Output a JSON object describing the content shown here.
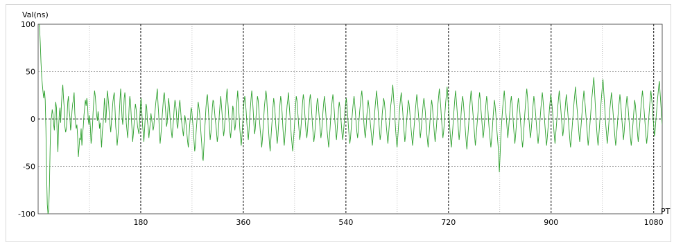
{
  "chart_data": {
    "type": "line",
    "ylabel": "Val(ns)",
    "xlabel": "PTP",
    "xlim": [
      0,
      1095
    ],
    "ylim": [
      -100,
      100
    ],
    "x_ticks": [
      180,
      360,
      540,
      720,
      900,
      1080
    ],
    "y_ticks": [
      100,
      50,
      0,
      -50,
      -100
    ],
    "grid": true,
    "line_color": "#2ea02e",
    "series": [
      {
        "values": [
          118,
          112,
          98,
          80,
          60,
          45,
          36,
          28,
          22,
          30,
          20,
          -10,
          -58,
          -90,
          -100,
          -96,
          -70,
          -30,
          -2,
          2,
          10,
          5,
          -6,
          -12,
          8,
          18,
          12,
          -18,
          -35,
          -8,
          5,
          12,
          -4,
          16,
          28,
          36,
          22,
          12,
          -8,
          -14,
          -10,
          2,
          18,
          24,
          10,
          2,
          -12,
          -6,
          8,
          16,
          20,
          28,
          6,
          -4,
          -10,
          -6,
          -18,
          -40,
          -30,
          -20,
          -22,
          -10,
          -28,
          -16,
          -8,
          4,
          12,
          20,
          14,
          22,
          16,
          0,
          -6,
          4,
          -8,
          -26,
          -20,
          -8,
          8,
          20,
          30,
          24,
          14,
          4,
          -2,
          8,
          2,
          -10,
          -4,
          -18,
          -30,
          -14,
          -6,
          6,
          22,
          12,
          -4,
          10,
          30,
          24,
          16,
          4,
          -6,
          -14,
          -2,
          8,
          18,
          24,
          28,
          12,
          -8,
          -16,
          -28,
          -20,
          -10,
          4,
          20,
          32,
          18,
          2,
          -6,
          6,
          22,
          28,
          16,
          -4,
          -12,
          -20,
          -6,
          12,
          24,
          18,
          4,
          -10,
          -24,
          -16,
          -6,
          8,
          16,
          10,
          0,
          -8,
          -12,
          -16,
          -2,
          14,
          22,
          8,
          -6,
          -14,
          -24,
          -10,
          4,
          16,
          12,
          -2,
          -8,
          -20,
          -12,
          -4,
          6,
          0,
          -6,
          -12,
          -8,
          2,
          10,
          18,
          24,
          32,
          16,
          4,
          -14,
          -26,
          -18,
          -8,
          4,
          14,
          24,
          28,
          16,
          6,
          -8,
          -4,
          10,
          22,
          14,
          2,
          -6,
          -14,
          -20,
          -10,
          0,
          12,
          20,
          16,
          8,
          -6,
          -10,
          2,
          14,
          20,
          10,
          0,
          -6,
          -12,
          -18,
          -8,
          4,
          0,
          -8,
          -16,
          -24,
          -30,
          -18,
          -6,
          4,
          12,
          8,
          -2,
          -10,
          -22,
          -34,
          -28,
          -14,
          -4,
          8,
          18,
          12,
          6,
          -4,
          -16,
          -26,
          -40,
          -44,
          -30,
          -14,
          -2,
          12,
          22,
          26,
          14,
          2,
          -10,
          -22,
          -14,
          -2,
          12,
          20,
          18,
          10,
          0,
          -6,
          -14,
          -24,
          -18,
          -8,
          6,
          16,
          24,
          14,
          4,
          -8,
          -18,
          -12,
          0,
          12,
          24,
          32,
          18,
          6,
          -6,
          -14,
          -20,
          -10,
          2,
          14,
          10,
          -4,
          -12,
          -6,
          8,
          20,
          30,
          16,
          4,
          -10,
          -20,
          -28,
          -18,
          -6,
          6,
          18,
          24,
          18,
          8,
          -4,
          -14,
          -22,
          -12,
          2,
          12,
          22,
          30,
          20,
          8,
          -6,
          -16,
          -10,
          2,
          14,
          24,
          20,
          10,
          -2,
          -12,
          -20,
          -30,
          -22,
          -10,
          2,
          14,
          22,
          30,
          24,
          10,
          -2,
          -14,
          -26,
          -34,
          -22,
          -10,
          0,
          12,
          22,
          16,
          6,
          -6,
          -16,
          -26,
          -18,
          -6,
          6,
          16,
          24,
          18,
          6,
          -8,
          -20,
          -28,
          -18,
          -6,
          4,
          14,
          20,
          28,
          16,
          4,
          -6,
          -18,
          -26,
          -34,
          -24,
          -12,
          0,
          12,
          24,
          20,
          10,
          -2,
          -12,
          -22,
          -16,
          -6,
          6,
          18,
          26,
          20,
          8,
          -4,
          -14,
          -20,
          -12,
          0,
          10,
          20,
          26,
          18,
          6,
          -6,
          -16,
          -24,
          -18,
          -8,
          2,
          14,
          22,
          18,
          8,
          -2,
          -12,
          -20,
          -14,
          -4,
          8,
          18,
          24,
          16,
          6,
          -6,
          -14,
          -22,
          -30,
          -20,
          -10,
          2,
          12,
          20,
          26,
          18,
          8,
          -4,
          -14,
          -22,
          -12,
          0,
          10,
          18,
          12,
          4,
          -6,
          -16,
          -22,
          -14,
          -4,
          8,
          16,
          22,
          14,
          4,
          -8,
          -18,
          -26,
          -20,
          -10,
          0,
          10,
          18,
          24,
          16,
          6,
          -4,
          -14,
          -20,
          -12,
          -2,
          8,
          16,
          24,
          30,
          20,
          8,
          -4,
          -14,
          -20,
          -10,
          2,
          12,
          20,
          14,
          6,
          -4,
          -12,
          -20,
          -28,
          -18,
          -8,
          4,
          14,
          22,
          30,
          20,
          10,
          -2,
          -12,
          -22,
          -16,
          -6,
          6,
          14,
          22,
          18,
          10,
          0,
          -10,
          -18,
          -26,
          -16,
          -6,
          4,
          14,
          20,
          28,
          36,
          24,
          12,
          0,
          -12,
          -22,
          -30,
          -20,
          -8,
          4,
          14,
          22,
          28,
          18,
          8,
          -4,
          -14,
          -24,
          -18,
          -8,
          2,
          12,
          20,
          16,
          8,
          -2,
          -12,
          -20,
          -28,
          -20,
          -10,
          0,
          10,
          18,
          26,
          18,
          8,
          -2,
          -12,
          -20,
          -12,
          -4,
          6,
          16,
          22,
          16,
          8,
          -4,
          -14,
          -22,
          -30,
          -20,
          -10,
          2,
          12,
          20,
          14,
          4,
          -6,
          -16,
          -24,
          -16,
          -6,
          6,
          16,
          24,
          32,
          22,
          12,
          0,
          -10,
          -20,
          -14,
          -4,
          8,
          18,
          26,
          34,
          24,
          12,
          0,
          -12,
          -22,
          -30,
          -20,
          -10,
          2,
          12,
          22,
          30,
          20,
          10,
          -2,
          -12,
          -22,
          -14,
          -4,
          8,
          18,
          24,
          18,
          8,
          -4,
          -14,
          -24,
          -32,
          -22,
          -12,
          0,
          12,
          22,
          30,
          22,
          12,
          2,
          -8,
          -18,
          -28,
          -20,
          -10,
          0,
          10,
          20,
          28,
          20,
          10,
          0,
          -10,
          -20,
          -14,
          -4,
          6,
          16,
          24,
          18,
          8,
          -4,
          -14,
          -22,
          -30,
          -22,
          -12,
          0,
          10,
          20,
          14,
          6,
          -6,
          -16,
          -26,
          -36,
          -56,
          -40,
          -22,
          -8,
          4,
          14,
          22,
          30,
          20,
          10,
          0,
          -10,
          -20,
          -12,
          -2,
          8,
          18,
          24,
          16,
          6,
          -6,
          -16,
          -26,
          -18,
          -8,
          4,
          14,
          22,
          16,
          8,
          -2,
          -12,
          -22,
          -30,
          -20,
          -8,
          4,
          14,
          24,
          32,
          22,
          12,
          0,
          -10,
          -20,
          -14,
          -4,
          6,
          16,
          24,
          18,
          10,
          0,
          -10,
          -18,
          -26,
          -18,
          -8,
          2,
          12,
          20,
          28,
          20,
          10,
          0,
          -10,
          -20,
          -28,
          -20,
          -10,
          0,
          10,
          18,
          26,
          20,
          12,
          2,
          -8,
          -18,
          -26,
          -16,
          -6,
          4,
          14,
          22,
          30,
          22,
          12,
          2,
          -8,
          -18,
          -12,
          -2,
          8,
          18,
          26,
          18,
          8,
          -2,
          -12,
          -22,
          -30,
          -22,
          -12,
          -2,
          8,
          18,
          26,
          34,
          24,
          14,
          4,
          -6,
          -16,
          -24,
          -16,
          -6,
          4,
          14,
          22,
          30,
          22,
          12,
          2,
          -8,
          -18,
          -28,
          -20,
          -10,
          0,
          10,
          20,
          28,
          36,
          44,
          30,
          16,
          2,
          -10,
          -20,
          -28,
          -18,
          -8,
          4,
          14,
          24,
          34,
          42,
          30,
          18,
          6,
          -6,
          -16,
          -26,
          -18,
          -8,
          2,
          12,
          20,
          28,
          20,
          10,
          0,
          -10,
          -20,
          -28,
          -20,
          -10,
          0,
          10,
          18,
          26,
          18,
          8,
          -2,
          -12,
          -22,
          -14,
          -4,
          6,
          16,
          24,
          18,
          8,
          -2,
          -12,
          -20,
          -28,
          -20,
          -10,
          0,
          10,
          20,
          14,
          4,
          -6,
          -16,
          -24,
          -16,
          -6,
          4,
          14,
          22,
          30,
          22,
          12,
          2,
          -8,
          -18,
          -26,
          -18,
          -8,
          2,
          12,
          22,
          30,
          22,
          12,
          2,
          -8,
          -18,
          -12,
          -2,
          8,
          18,
          26,
          34,
          40,
          28,
          16,
          4,
          -6
        ]
      }
    ]
  }
}
